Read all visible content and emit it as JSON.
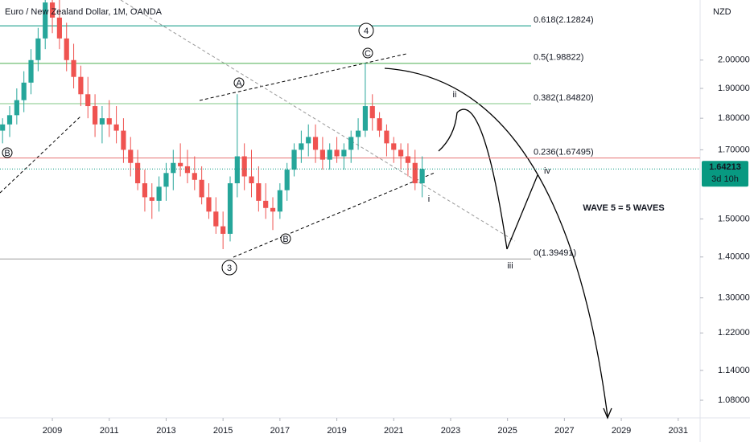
{
  "chart_data": {
    "type": "candlestick",
    "title": "Euro / New Zealand Dollar, 1M, OANDA",
    "currency": "NZD",
    "log_scale": true,
    "xlim": [
      2007.16,
      2031.77
    ],
    "ylim": [
      1.046,
      2.23
    ],
    "xticks": [
      2009,
      2011,
      2013,
      2015,
      2017,
      2019,
      2021,
      2023,
      2025,
      2027,
      2029,
      2031
    ],
    "yticks": [
      {
        "value": 2.0,
        "label": "2.00000"
      },
      {
        "value": 1.9,
        "label": "1.90000"
      },
      {
        "value": 1.8,
        "label": "1.80000"
      },
      {
        "value": 1.7,
        "label": "1.70000"
      },
      {
        "value": 1.5,
        "label": "1.50000"
      },
      {
        "value": 1.4,
        "label": "1.40000"
      },
      {
        "value": 1.3,
        "label": "1.30000"
      },
      {
        "value": 1.22,
        "label": "1.22000"
      },
      {
        "value": 1.14,
        "label": "1.14000"
      },
      {
        "value": 1.08,
        "label": "1.08000"
      }
    ],
    "up_color": "#26a69a",
    "down_color": "#ef5350",
    "series": {
      "x": [
        2007.25,
        2007.5,
        2007.75,
        2008.0,
        2008.25,
        2008.5,
        2008.75,
        2009.0,
        2009.25,
        2009.5,
        2009.75,
        2010.0,
        2010.25,
        2010.5,
        2010.75,
        2011.0,
        2011.25,
        2011.5,
        2011.75,
        2012.0,
        2012.25,
        2012.5,
        2012.75,
        2013.0,
        2013.25,
        2013.5,
        2013.75,
        2014.0,
        2014.25,
        2014.5,
        2014.75,
        2015.0,
        2015.25,
        2015.5,
        2015.75,
        2016.0,
        2016.25,
        2016.5,
        2016.75,
        2017.0,
        2017.25,
        2017.5,
        2017.75,
        2018.0,
        2018.25,
        2018.5,
        2018.75,
        2019.0,
        2019.25,
        2019.5,
        2019.75,
        2020.0,
        2020.25,
        2020.5,
        2020.75,
        2021.0,
        2021.25,
        2021.5,
        2021.75,
        2022.0
      ],
      "open": [
        1.76,
        1.78,
        1.81,
        1.86,
        1.92,
        2.0,
        2.08,
        2.22,
        2.16,
        2.08,
        2.0,
        1.94,
        1.88,
        1.84,
        1.78,
        1.8,
        1.78,
        1.76,
        1.7,
        1.66,
        1.6,
        1.56,
        1.55,
        1.59,
        1.63,
        1.66,
        1.65,
        1.63,
        1.61,
        1.56,
        1.52,
        1.48,
        1.46,
        1.6,
        1.68,
        1.62,
        1.6,
        1.55,
        1.53,
        1.52,
        1.58,
        1.64,
        1.7,
        1.72,
        1.74,
        1.7,
        1.67,
        1.7,
        1.68,
        1.7,
        1.74,
        1.76,
        1.84,
        1.8,
        1.76,
        1.72,
        1.7,
        1.68,
        1.66,
        1.6
      ],
      "high": [
        1.8,
        1.84,
        1.9,
        1.96,
        2.04,
        2.12,
        2.3,
        2.32,
        2.24,
        2.14,
        2.06,
        1.98,
        1.94,
        1.88,
        1.84,
        1.86,
        1.84,
        1.8,
        1.74,
        1.7,
        1.64,
        1.6,
        1.62,
        1.66,
        1.7,
        1.72,
        1.7,
        1.68,
        1.65,
        1.6,
        1.56,
        1.52,
        1.62,
        1.88,
        1.72,
        1.7,
        1.65,
        1.6,
        1.56,
        1.6,
        1.66,
        1.72,
        1.76,
        1.78,
        1.78,
        1.74,
        1.72,
        1.74,
        1.72,
        1.76,
        1.8,
        1.99,
        1.88,
        1.82,
        1.78,
        1.74,
        1.72,
        1.72,
        1.7,
        1.68
      ],
      "low": [
        1.72,
        1.74,
        1.78,
        1.82,
        1.88,
        1.96,
        2.04,
        2.1,
        2.04,
        1.96,
        1.9,
        1.84,
        1.8,
        1.74,
        1.72,
        1.74,
        1.72,
        1.66,
        1.62,
        1.58,
        1.52,
        1.5,
        1.52,
        1.55,
        1.58,
        1.62,
        1.6,
        1.58,
        1.54,
        1.5,
        1.46,
        1.42,
        1.44,
        1.56,
        1.58,
        1.56,
        1.52,
        1.5,
        1.47,
        1.5,
        1.55,
        1.62,
        1.66,
        1.68,
        1.66,
        1.64,
        1.64,
        1.66,
        1.64,
        1.66,
        1.7,
        1.74,
        1.76,
        1.74,
        1.68,
        1.66,
        1.64,
        1.62,
        1.58,
        1.56
      ],
      "close": [
        1.78,
        1.81,
        1.86,
        1.92,
        2.0,
        2.08,
        2.22,
        2.16,
        2.08,
        2.0,
        1.94,
        1.88,
        1.84,
        1.78,
        1.8,
        1.78,
        1.76,
        1.7,
        1.66,
        1.6,
        1.56,
        1.55,
        1.59,
        1.63,
        1.66,
        1.65,
        1.63,
        1.61,
        1.56,
        1.52,
        1.48,
        1.46,
        1.6,
        1.68,
        1.62,
        1.6,
        1.55,
        1.53,
        1.52,
        1.58,
        1.64,
        1.7,
        1.72,
        1.74,
        1.7,
        1.67,
        1.7,
        1.68,
        1.7,
        1.74,
        1.76,
        1.84,
        1.8,
        1.76,
        1.72,
        1.7,
        1.68,
        1.66,
        1.6,
        1.64213
      ]
    },
    "last_price": {
      "value": 1.64213,
      "label": "1.64213",
      "countdown": "3d 10h",
      "color": "#089981"
    },
    "fib_levels": [
      {
        "label": "0.618(2.12824)",
        "value": 2.12824,
        "color": "#089981"
      },
      {
        "label": "0.5(1.98822)",
        "value": 1.98822,
        "color": "#4caf50"
      },
      {
        "label": "0.382(1.84820)",
        "value": 1.8482,
        "color": "#81c784"
      },
      {
        "label": "0.236(1.67495)",
        "value": 1.67495,
        "color": "#e57373"
      },
      {
        "label": "0(1.39491)",
        "value": 1.39491,
        "color": "#9e9e9e"
      }
    ],
    "annotations": [
      "4",
      "3",
      "A",
      "B",
      "C",
      "B",
      "i",
      "ii",
      "iii",
      "iv",
      "WAVE 5 = 5 WAVES"
    ]
  }
}
